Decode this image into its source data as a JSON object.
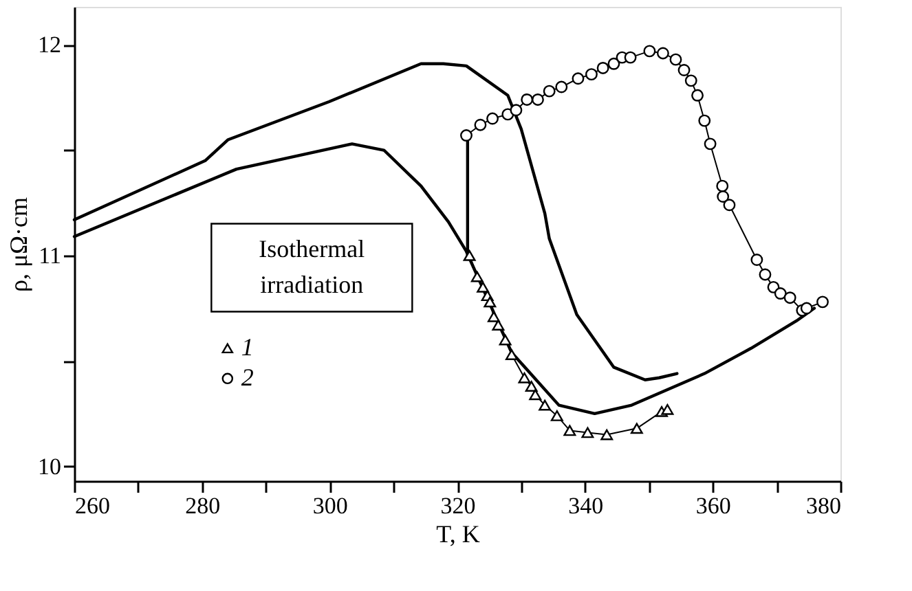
{
  "chart_data": {
    "type": "line",
    "xlabel": "T, K",
    "ylabel": "ρ, μΩ·cm",
    "xlim": [
      260,
      380
    ],
    "ylim": [
      9.93,
      12.18
    ],
    "xticks": [
      260,
      {
        "value": 270,
        "label": null
      },
      280,
      {
        "value": 290,
        "label": null
      },
      300,
      {
        "value": 310,
        "label": null
      },
      320,
      {
        "value": 330,
        "label": null
      },
      340,
      {
        "value": 350,
        "label": null
      },
      360,
      {
        "value": 370,
        "label": null
      },
      380
    ],
    "yticks": [
      10,
      {
        "value": 10.5,
        "label": null
      },
      11,
      {
        "value": 11.5,
        "label": null
      },
      12
    ],
    "grid": false,
    "legend": "bottom left",
    "annotations": [
      "Isothermal irradiation"
    ],
    "series": [
      {
        "color": "#000000",
        "marker": "none",
        "x": [
          321.6,
          321.6
        ],
        "values": [
          11.0,
          11.57
        ]
      },
      {
        "color": "#000000",
        "marker": "none",
        "x": [
          260,
          280.5,
          284.1,
          299.9,
          314.3,
          317.8,
          321.4,
          327.9,
          330.0,
          333.7,
          334.4,
          338.7,
          344.5,
          349.4,
          351.6,
          354.4
        ],
        "values": [
          11.17,
          11.45,
          11.55,
          11.73,
          11.91,
          11.91,
          11.9,
          11.76,
          11.6,
          11.2,
          11.08,
          10.72,
          10.47,
          10.41,
          10.42,
          10.44
        ]
      },
      {
        "color": "#000000",
        "marker": "none",
        "x": [
          260,
          285.4,
          303.5,
          308.5,
          314.3,
          318.6,
          321.4,
          328.5,
          335.9,
          341.5,
          347.3,
          358.7,
          366.0,
          373.1,
          375.9
        ],
        "values": [
          11.09,
          11.41,
          11.53,
          11.5,
          11.33,
          11.16,
          11.02,
          10.54,
          10.29,
          10.25,
          10.29,
          10.44,
          10.56,
          10.69,
          10.75
        ]
      },
      {
        "name": "1",
        "color": "#000000",
        "marker": "triangle",
        "x": [
          321.9,
          323.1,
          324.0,
          324.7,
          325.1,
          325.7,
          326.4,
          327.5,
          328.5,
          330.5,
          331.6,
          332.2,
          333.7,
          335.6,
          337.6,
          340.4,
          343.4,
          348.1,
          352.0,
          352.9
        ],
        "values": [
          11.0,
          10.9,
          10.85,
          10.81,
          10.78,
          10.71,
          10.67,
          10.6,
          10.53,
          10.42,
          10.38,
          10.34,
          10.29,
          10.24,
          10.17,
          10.16,
          10.15,
          10.18,
          10.26,
          10.27
        ]
      },
      {
        "name": "2",
        "color": "#000000",
        "marker": "circle",
        "x": [
          321.4,
          323.6,
          325.5,
          327.9,
          329.2,
          330.9,
          332.6,
          334.4,
          336.3,
          338.9,
          341.0,
          342.8,
          344.5,
          345.8,
          347.1,
          350.1,
          352.2,
          354.2,
          355.5,
          356.6,
          357.6,
          358.7,
          359.6,
          361.5,
          361.6,
          362.6,
          366.9,
          368.2,
          369.5,
          370.6,
          372.1,
          374.0,
          374.7,
          377.2
        ],
        "values": [
          11.57,
          11.62,
          11.65,
          11.67,
          11.69,
          11.74,
          11.74,
          11.78,
          11.8,
          11.84,
          11.86,
          11.89,
          11.91,
          11.94,
          11.94,
          11.97,
          11.96,
          11.93,
          11.88,
          11.83,
          11.76,
          11.64,
          11.53,
          11.33,
          11.28,
          11.24,
          10.98,
          10.91,
          10.85,
          10.82,
          10.8,
          10.74,
          10.75,
          10.78
        ]
      }
    ]
  }
}
